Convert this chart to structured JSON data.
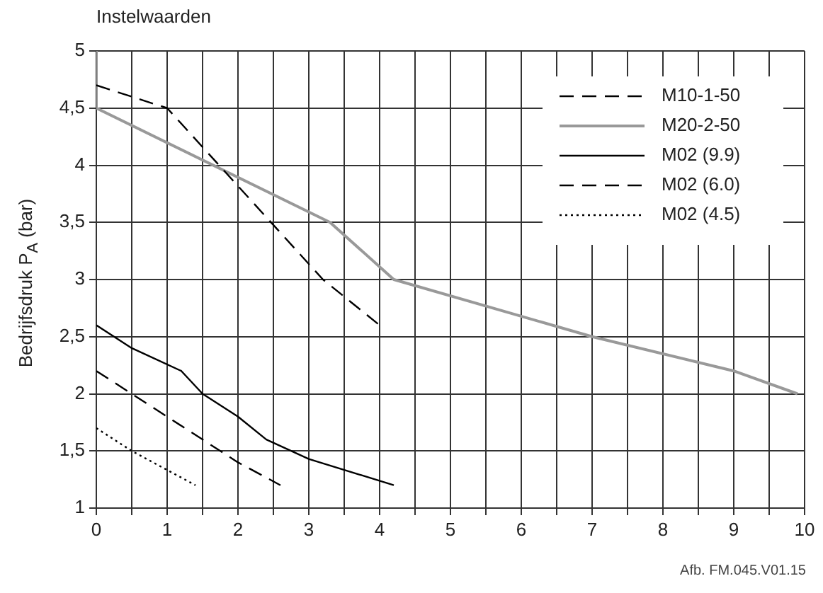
{
  "chart_data": {
    "type": "line",
    "title": "Instelwaarden",
    "ylabel": "Bedrijfsdruk P$_{A}$ (bar)",
    "annotations": [
      "Afb. FM.045.V01.15"
    ],
    "xlim": [
      0,
      10
    ],
    "ylim": [
      1,
      5
    ],
    "xticks": [
      0,
      {
        "value": 0.5,
        "label": null
      },
      1,
      {
        "value": 1.5,
        "label": null
      },
      2,
      {
        "value": 2.5,
        "label": null
      },
      3,
      {
        "value": 3.5,
        "label": null
      },
      4,
      {
        "value": 4.5,
        "label": null
      },
      5,
      {
        "value": 5.5,
        "label": null
      },
      6,
      {
        "value": 6.5,
        "label": null
      },
      7,
      {
        "value": 7.5,
        "label": null
      },
      8,
      {
        "value": 8.5,
        "label": null
      },
      9,
      {
        "value": 9.5,
        "label": null
      },
      10
    ],
    "yticks": [
      1,
      {
        "value": 1.5,
        "label": "1,5"
      },
      2,
      {
        "value": 2.5,
        "label": "2,5"
      },
      3,
      {
        "value": 3.5,
        "label": "3,5"
      },
      4,
      {
        "value": 4.5,
        "label": "4,5"
      },
      5
    ],
    "grid": true,
    "legend": "top right",
    "marker": "none",
    "series": [
      {
        "name": "M10-1-50",
        "color": "#000000",
        "line_style": "dashed",
        "x": [
          0,
          1,
          3.2,
          4
        ],
        "values": [
          4.7,
          4.5,
          3.0,
          2.6
        ]
      },
      {
        "name": "M20-2-50",
        "color": "#999999",
        "line_style": "solid",
        "x": [
          0,
          0,
          3.3,
          4.2,
          7,
          9,
          9.9
        ],
        "values": [
          5,
          4.5,
          3.5,
          3.0,
          2.5,
          2.2,
          2.0
        ]
      },
      {
        "name": "M02 (9.9)",
        "color": "#000000",
        "line_style": "solid",
        "x": [
          0,
          0.5,
          1.2,
          1.5,
          2,
          2.4,
          3,
          4.2
        ],
        "values": [
          2.6,
          2.4,
          2.2,
          2.0,
          1.8,
          1.6,
          1.43,
          1.2
        ]
      },
      {
        "name": "M02 (6.0)",
        "color": "#000000",
        "line_style": "dashed",
        "x": [
          0,
          0.5,
          1.5,
          2,
          2.6
        ],
        "values": [
          2.2,
          2.0,
          1.6,
          1.4,
          1.2
        ]
      },
      {
        "name": "M02 (4.5)",
        "color": "#000000",
        "line_style": "dotted",
        "x": [
          0,
          0.5,
          1.4
        ],
        "values": [
          1.7,
          1.5,
          1.2
        ]
      }
    ]
  }
}
